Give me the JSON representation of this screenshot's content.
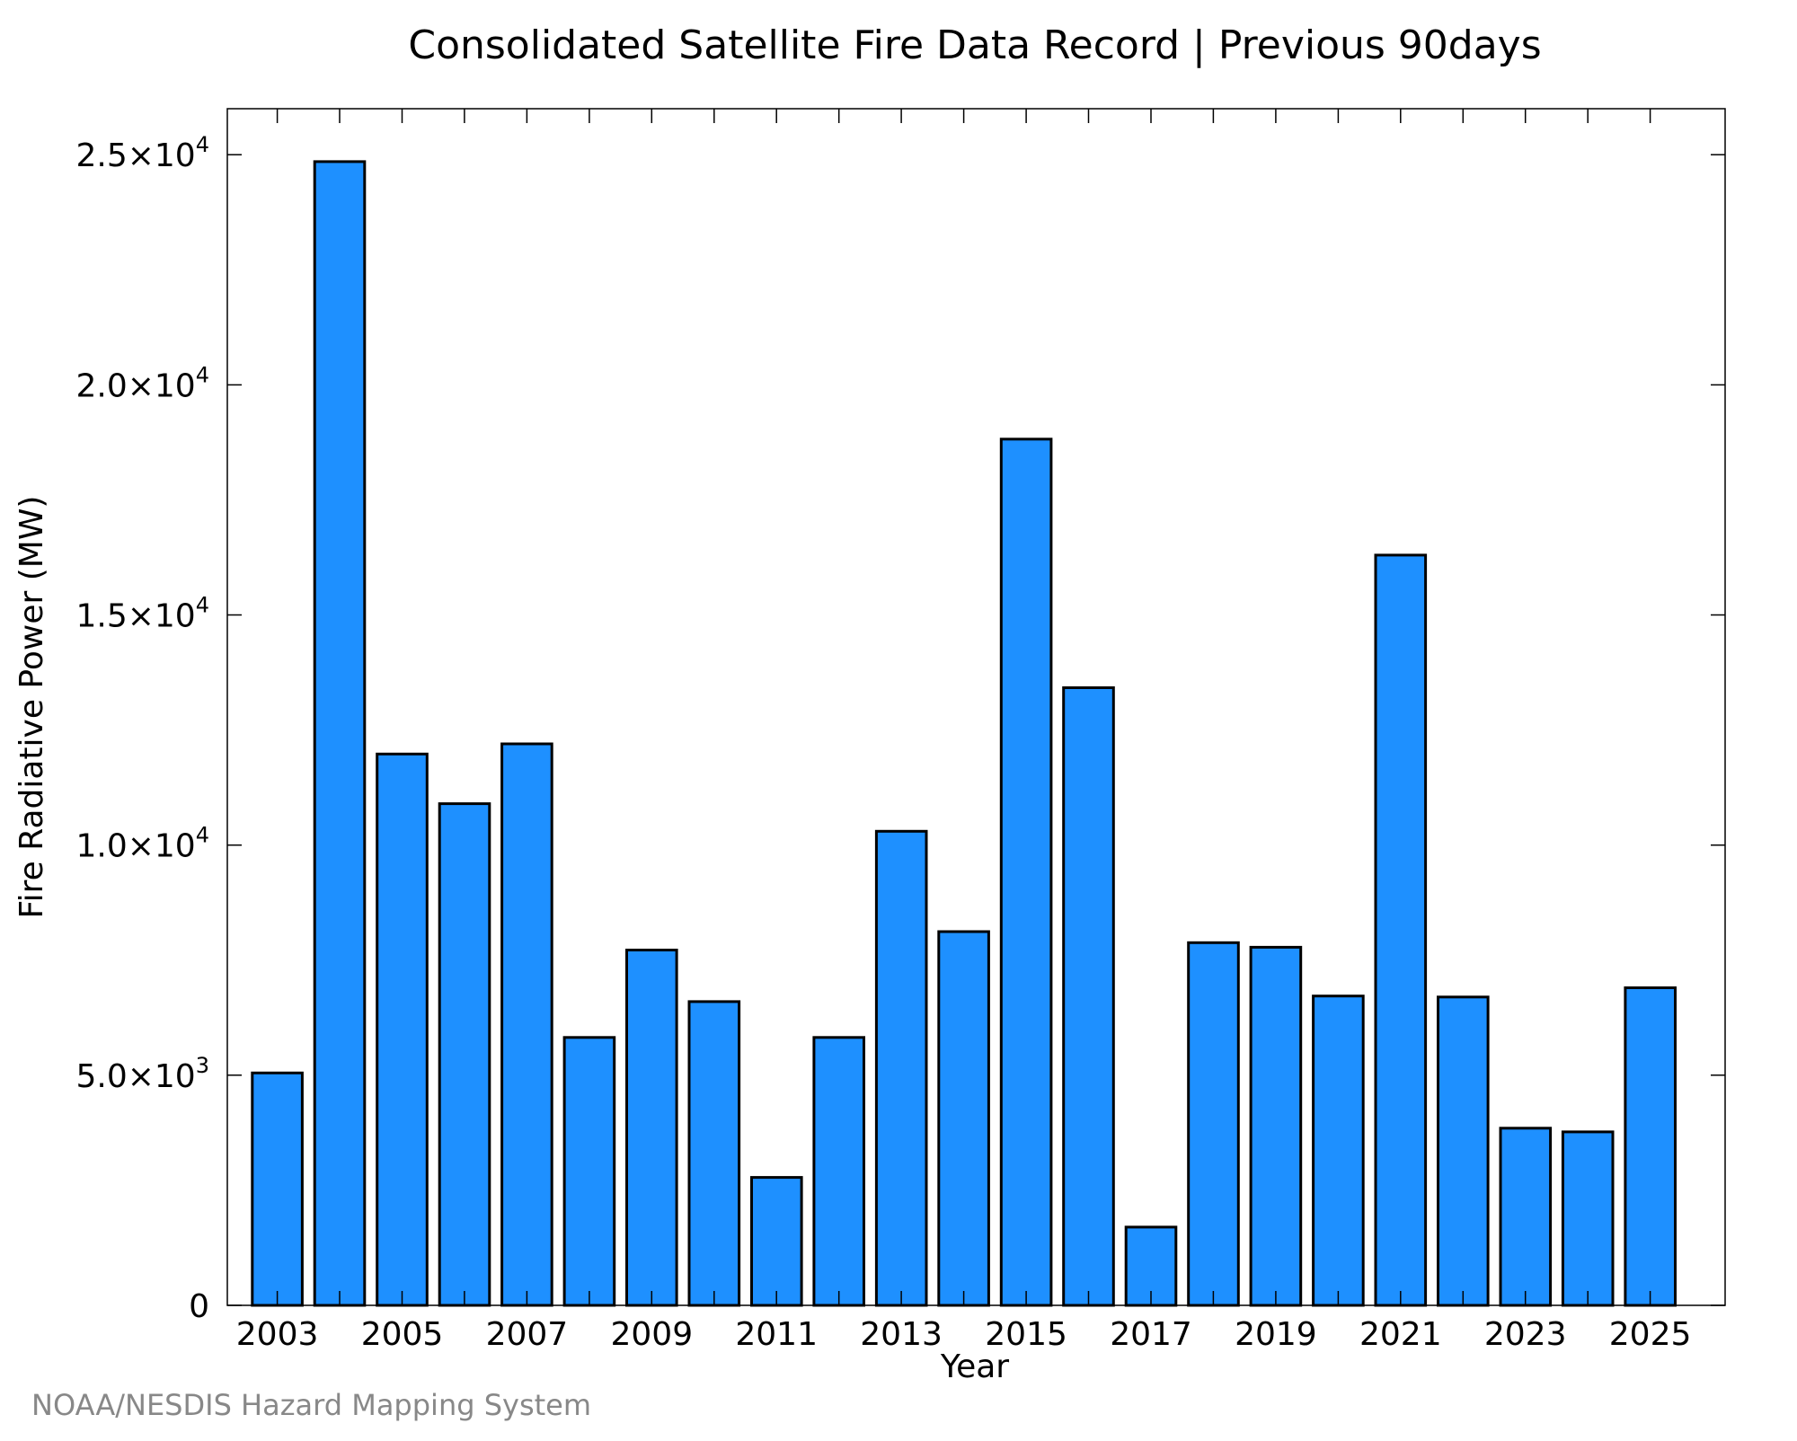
{
  "chart_data": {
    "type": "bar",
    "title": "Consolidated Satellite Fire Data Record | Previous 90days",
    "xlabel": "Year",
    "ylabel": "Fire Radiative Power (MW)",
    "x": [
      2003,
      2004,
      2005,
      2006,
      2007,
      2008,
      2009,
      2010,
      2011,
      2012,
      2013,
      2014,
      2015,
      2016,
      2017,
      2018,
      2019,
      2020,
      2021,
      2022,
      2023,
      2024,
      2025
    ],
    "values": [
      5050,
      24850,
      11980,
      10900,
      12200,
      5820,
      7720,
      6600,
      2780,
      5820,
      10300,
      8120,
      18820,
      13420,
      1700,
      7880,
      7780,
      6720,
      16300,
      6700,
      3850,
      3770,
      6900
    ],
    "ylim": [
      0,
      26000
    ],
    "xlim": [
      2002.2,
      2026.2
    ],
    "x_ticks": [
      2003,
      2005,
      2007,
      2009,
      2011,
      2013,
      2015,
      2017,
      2019,
      2021,
      2023,
      2025
    ],
    "x_minor_ticks": [
      2004,
      2006,
      2008,
      2010,
      2012,
      2014,
      2016,
      2018,
      2020,
      2022,
      2024
    ],
    "y_ticks": [
      {
        "value": 0,
        "mantissa": "0",
        "exponent": ""
      },
      {
        "value": 5000,
        "mantissa": "5.0×10",
        "exponent": "3"
      },
      {
        "value": 10000,
        "mantissa": "1.0×10",
        "exponent": "4"
      },
      {
        "value": 15000,
        "mantissa": "1.5×10",
        "exponent": "4"
      },
      {
        "value": 20000,
        "mantissa": "2.0×10",
        "exponent": "4"
      },
      {
        "value": 25000,
        "mantissa": "2.5×10",
        "exponent": "4"
      }
    ],
    "bar_color": "#1E90FF",
    "bar_edge_color": "#000000",
    "grid": false,
    "legend": "none"
  },
  "credit": "NOAA/NESDIS Hazard Mapping System"
}
